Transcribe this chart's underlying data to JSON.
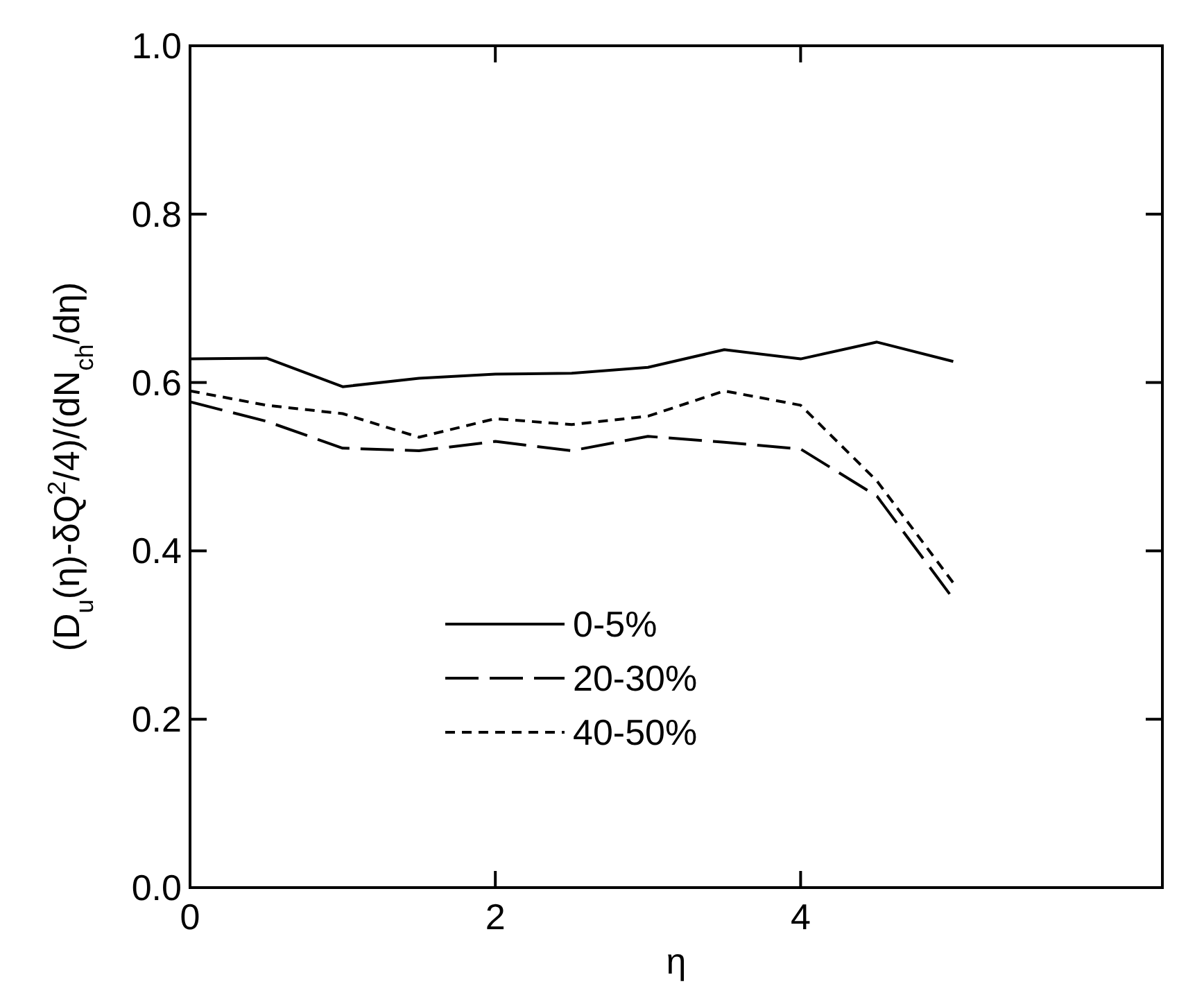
{
  "chart_data": {
    "type": "line",
    "xlabel": "η",
    "ylabel": "(D$_{u}$(η)-δQ$^{2}$/4)/(dN$_{ch}$/dη)",
    "x": [
      0,
      0.5,
      1,
      1.5,
      2,
      2.5,
      3,
      3.5,
      4,
      4.5,
      5
    ],
    "xlim": [
      0,
      6.37
    ],
    "xticks": [
      0,
      2,
      4
    ],
    "ylim": [
      0,
      1
    ],
    "yticks": [
      {
        "value": 0,
        "label": "0.0"
      },
      0.2,
      0.4,
      0.6,
      0.8,
      {
        "value": 1,
        "label": "1.0"
      }
    ],
    "legend": "bottom",
    "grid": false,
    "series": [
      {
        "name": "0-5%",
        "color": "#000000",
        "line_style": "solid",
        "values": [
          0.628,
          0.629,
          0.595,
          0.605,
          0.61,
          0.611,
          0.618,
          0.639,
          0.628,
          0.648,
          0.625
        ]
      },
      {
        "name": "20-30%",
        "color": "#000000",
        "line_style": "dashed",
        "values": [
          0.577,
          0.554,
          0.522,
          0.519,
          0.53,
          0.519,
          0.536,
          0.529,
          0.521,
          0.465,
          0.343
        ]
      },
      {
        "name": "40-50%",
        "color": "#000000",
        "line_style": "dotted",
        "values": [
          0.59,
          0.573,
          0.563,
          0.535,
          0.557,
          0.55,
          0.56,
          0.59,
          0.573,
          0.483,
          0.362
        ]
      }
    ]
  }
}
